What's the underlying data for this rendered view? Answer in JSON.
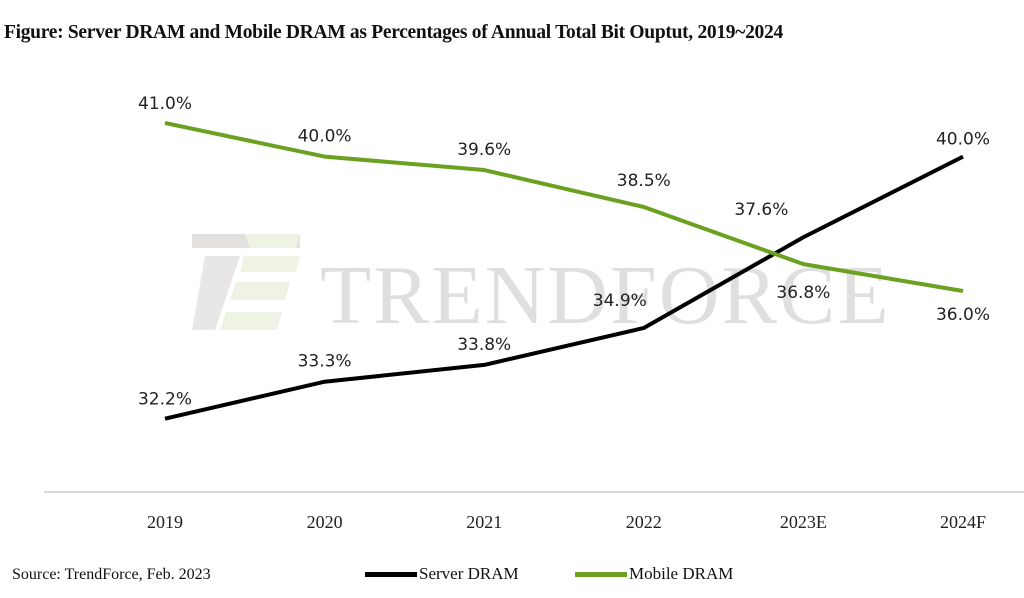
{
  "chart_data": {
    "type": "line",
    "title": "Figure: Server DRAM and Mobile DRAM as Percentages of Annual Total Bit Ouptut, 2019~2024",
    "categories": [
      "2019",
      "2020",
      "2021",
      "2022",
      "2023E",
      "2024F"
    ],
    "series": [
      {
        "name": "Server DRAM",
        "color": "#000000",
        "values": [
          32.2,
          33.3,
          33.8,
          34.9,
          37.6,
          40.0
        ],
        "labels": [
          "32.2%",
          "33.3%",
          "33.8%",
          "34.9%",
          "37.6%",
          "40.0%"
        ]
      },
      {
        "name": "Mobile DRAM",
        "color": "#6aa120",
        "values": [
          41.0,
          40.0,
          39.6,
          38.5,
          36.8,
          36.0
        ],
        "labels": [
          "41.0%",
          "40.0%",
          "39.6%",
          "38.5%",
          "36.8%",
          "36.0%"
        ]
      }
    ],
    "xlabel": "",
    "ylabel": "",
    "grid": false,
    "legend_position": "bottom",
    "source": "Source: TrendForce, Feb.  2023",
    "watermark": "TRENDFORCE"
  }
}
